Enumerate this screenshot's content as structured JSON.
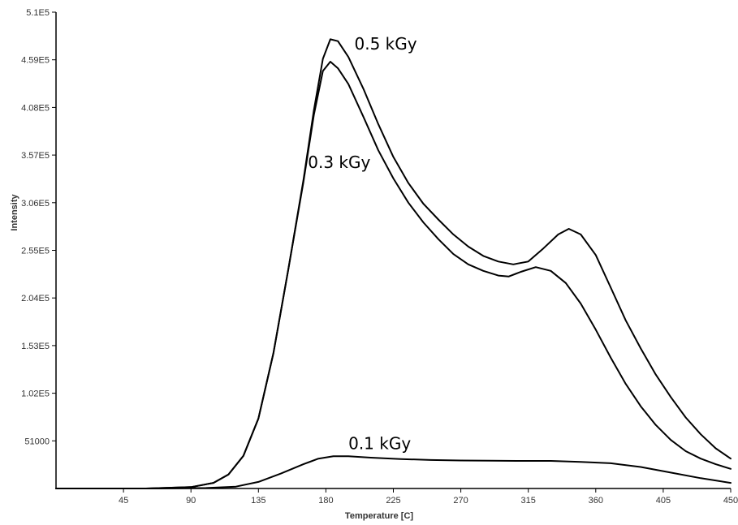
{
  "chart_data": {
    "type": "line",
    "xlabel": "Temperature [C]",
    "ylabel": "Intensity",
    "xlim": [
      0,
      450
    ],
    "ylim": [
      0,
      510000
    ],
    "x_ticks": [
      45,
      90,
      135,
      180,
      225,
      270,
      315,
      360,
      405,
      450
    ],
    "y_ticks": [
      51000,
      102000,
      153000,
      204000,
      255000,
      306000,
      357000,
      408000,
      459000,
      510000
    ],
    "x_tick_labels": [
      "45",
      "90",
      "135",
      "180",
      "225",
      "270",
      "315",
      "360",
      "405",
      "450"
    ],
    "y_tick_labels": [
      "51000",
      "1.02E5",
      "1.53E5",
      "2.04E5",
      "2.55E5",
      "3.06E5",
      "3.57E5",
      "4.08E5",
      "4.59E5",
      "5.1E5"
    ],
    "series": [
      {
        "name": "0.5 kGy",
        "label_at": [
          199,
          470000
        ],
        "points": [
          [
            0,
            0
          ],
          [
            60,
            0
          ],
          [
            90,
            1500
          ],
          [
            105,
            6000
          ],
          [
            115,
            15000
          ],
          [
            125,
            35000
          ],
          [
            135,
            75000
          ],
          [
            145,
            145000
          ],
          [
            155,
            235000
          ],
          [
            165,
            330000
          ],
          [
            172,
            405000
          ],
          [
            178,
            460000
          ],
          [
            183,
            481000
          ],
          [
            188,
            479000
          ],
          [
            195,
            462000
          ],
          [
            205,
            428000
          ],
          [
            215,
            390000
          ],
          [
            225,
            355000
          ],
          [
            235,
            327000
          ],
          [
            245,
            305000
          ],
          [
            255,
            288000
          ],
          [
            265,
            272000
          ],
          [
            275,
            259000
          ],
          [
            285,
            249000
          ],
          [
            295,
            243000
          ],
          [
            305,
            240000
          ],
          [
            315,
            243000
          ],
          [
            325,
            257000
          ],
          [
            335,
            272000
          ],
          [
            342,
            278000
          ],
          [
            350,
            272000
          ],
          [
            360,
            250000
          ],
          [
            370,
            215000
          ],
          [
            380,
            180000
          ],
          [
            390,
            150000
          ],
          [
            400,
            122000
          ],
          [
            410,
            98000
          ],
          [
            420,
            76000
          ],
          [
            430,
            58000
          ],
          [
            440,
            43000
          ],
          [
            450,
            32000
          ]
        ]
      },
      {
        "name": "0.3 kGy",
        "label_at": [
          168,
          343000
        ],
        "points": [
          [
            0,
            0
          ],
          [
            60,
            0
          ],
          [
            90,
            1500
          ],
          [
            105,
            6000
          ],
          [
            115,
            15000
          ],
          [
            125,
            35000
          ],
          [
            135,
            75000
          ],
          [
            145,
            145000
          ],
          [
            155,
            235000
          ],
          [
            165,
            328000
          ],
          [
            172,
            400000
          ],
          [
            178,
            447000
          ],
          [
            183,
            457000
          ],
          [
            188,
            450000
          ],
          [
            195,
            433000
          ],
          [
            205,
            398000
          ],
          [
            215,
            362000
          ],
          [
            225,
            332000
          ],
          [
            235,
            306000
          ],
          [
            245,
            285000
          ],
          [
            255,
            267000
          ],
          [
            265,
            251000
          ],
          [
            275,
            240000
          ],
          [
            285,
            233000
          ],
          [
            295,
            228000
          ],
          [
            302,
            227000
          ],
          [
            310,
            232000
          ],
          [
            320,
            237000
          ],
          [
            330,
            233000
          ],
          [
            340,
            220000
          ],
          [
            350,
            198000
          ],
          [
            360,
            170000
          ],
          [
            370,
            140000
          ],
          [
            380,
            112000
          ],
          [
            390,
            88000
          ],
          [
            400,
            68000
          ],
          [
            410,
            52000
          ],
          [
            420,
            40000
          ],
          [
            430,
            32000
          ],
          [
            440,
            26000
          ],
          [
            450,
            21000
          ]
        ]
      },
      {
        "name": "0.1 kGy",
        "label_at": [
          195,
          42000
        ],
        "points": [
          [
            0,
            0
          ],
          [
            70,
            0
          ],
          [
            100,
            500
          ],
          [
            120,
            2000
          ],
          [
            135,
            7000
          ],
          [
            150,
            16000
          ],
          [
            165,
            26000
          ],
          [
            175,
            32000
          ],
          [
            185,
            34500
          ],
          [
            195,
            34500
          ],
          [
            210,
            33000
          ],
          [
            230,
            31500
          ],
          [
            250,
            30500
          ],
          [
            270,
            30000
          ],
          [
            290,
            29800
          ],
          [
            310,
            29500
          ],
          [
            330,
            29500
          ],
          [
            350,
            28500
          ],
          [
            370,
            27000
          ],
          [
            390,
            23000
          ],
          [
            410,
            17000
          ],
          [
            430,
            11000
          ],
          [
            450,
            6000
          ]
        ]
      }
    ]
  }
}
